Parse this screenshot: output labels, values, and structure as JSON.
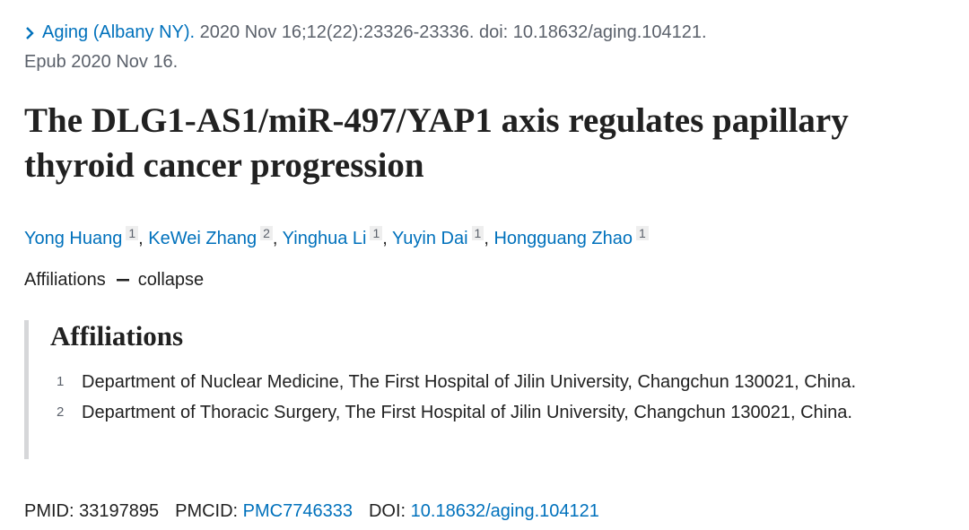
{
  "citation": {
    "journal": "Aging (Albany NY).",
    "details": "2020 Nov 16;12(22):23326-23336. doi: 10.18632/aging.104121.",
    "epub": "Epub 2020 Nov 16."
  },
  "title": "The DLG1-AS1/miR-497/YAP1 axis regulates papillary thyroid cancer progression",
  "authors": [
    {
      "name": "Yong Huang",
      "affiliation": "1",
      "separator": ","
    },
    {
      "name": "KeWei Zhang",
      "affiliation": "2",
      "separator": ","
    },
    {
      "name": "Yinghua Li",
      "affiliation": "1",
      "separator": ","
    },
    {
      "name": "Yuyin Dai",
      "affiliation": "1",
      "separator": ","
    },
    {
      "name": "Hongguang Zhao",
      "affiliation": "1"
    }
  ],
  "affiliations_toggle": {
    "label": "Affiliations",
    "action": "collapse"
  },
  "affiliations": {
    "heading": "Affiliations",
    "items": [
      {
        "number": "1",
        "text": "Department of Nuclear Medicine, The First Hospital of Jilin University, Changchun 130021, China."
      },
      {
        "number": "2",
        "text": "Department of Thoracic Surgery, The First Hospital of Jilin University, Changchun 130021, China."
      }
    ]
  },
  "identifiers": [
    {
      "label": "PMID:",
      "value": "33197895"
    },
    {
      "label": "PMCID:",
      "value": "PMC7746333"
    },
    {
      "label": "DOI:",
      "value": "10.18632/aging.104121"
    }
  ]
}
